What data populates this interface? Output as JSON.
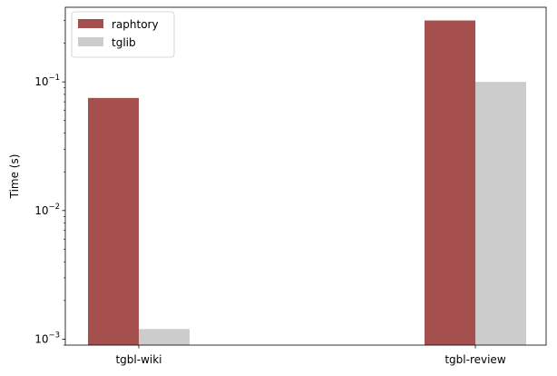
{
  "chart_data": {
    "type": "bar",
    "title": "",
    "xlabel": "",
    "ylabel": "Time (s)",
    "yscale": "log",
    "ylim": [
      0.0009,
      0.38
    ],
    "categories": [
      "tgbl-wiki",
      "tgbl-review"
    ],
    "series": [
      {
        "name": "raphtory",
        "values": [
          0.075,
          0.3
        ],
        "color": "#a64f4f"
      },
      {
        "name": "tglib",
        "values": [
          0.0012,
          0.1
        ],
        "color": "#cccccc"
      }
    ],
    "yticks": [
      {
        "value": 0.001,
        "base": "10",
        "exp": "−3"
      },
      {
        "value": 0.01,
        "base": "10",
        "exp": "−2"
      },
      {
        "value": 0.1,
        "base": "10",
        "exp": "−1"
      }
    ],
    "legend_position": "top-left",
    "grid": false
  }
}
